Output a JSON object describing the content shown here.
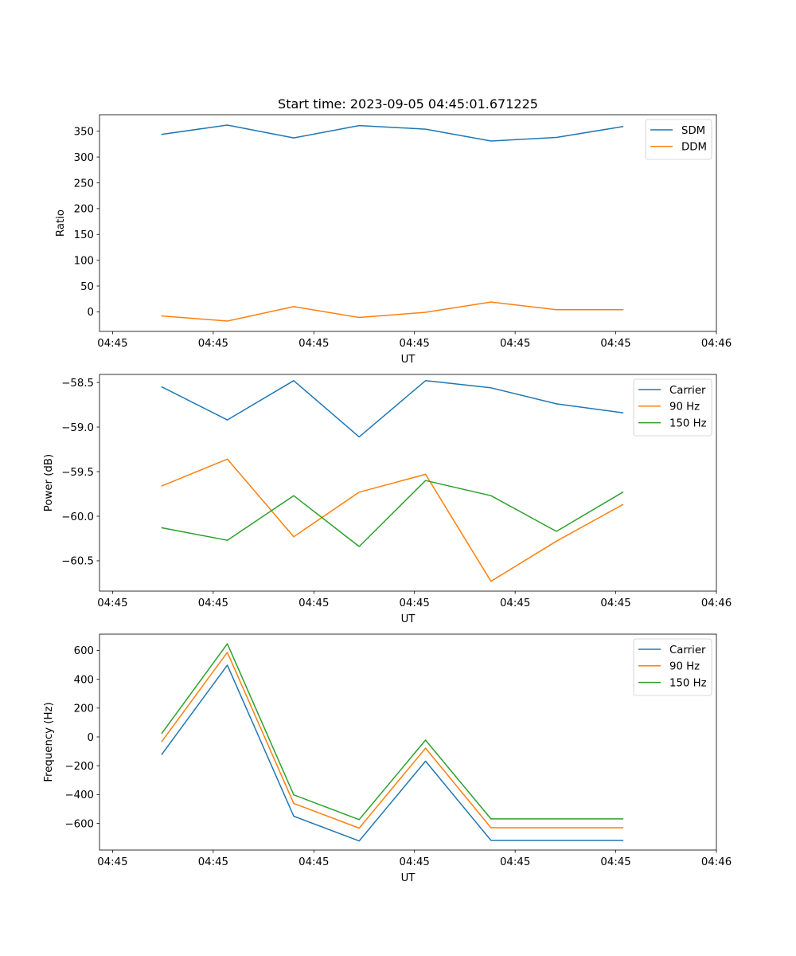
{
  "figure": {
    "title": "Start time: 2023-09-05 04:45:01.671225"
  },
  "chart_data": [
    {
      "type": "line",
      "title": "Start time: 2023-09-05 04:45:01.671225",
      "xlabel": "UT",
      "ylabel": "Ratio",
      "x_unit": "seconds after 04:45:00",
      "xlim": [
        -1.3,
        60
      ],
      "xticks": [
        0,
        10,
        20,
        30,
        40,
        50,
        60
      ],
      "xtick_labels": [
        "04:45",
        "04:45",
        "04:45",
        "04:45",
        "04:45",
        "04:45",
        "04:46"
      ],
      "ylim": [
        -38,
        382
      ],
      "yticks": [
        0,
        50,
        100,
        150,
        200,
        250,
        300,
        350
      ],
      "ytick_labels": [
        "0",
        "50",
        "100",
        "150",
        "200",
        "250",
        "300",
        "350"
      ],
      "x": [
        4.9,
        11.4,
        18.0,
        24.5,
        31.1,
        37.6,
        44.1,
        50.7
      ],
      "series": [
        {
          "name": "SDM",
          "color": "#1f77b4",
          "values": [
            344,
            362,
            337,
            361,
            354,
            331,
            338,
            359
          ]
        },
        {
          "name": "DDM",
          "color": "#ff7f0e",
          "values": [
            -8,
            -18,
            10,
            -11,
            -1,
            19,
            4,
            4
          ]
        }
      ],
      "legend": "top-right",
      "grid": false
    },
    {
      "type": "line",
      "xlabel": "UT",
      "ylabel": "Power (dB)",
      "x_unit": "seconds after 04:45:00",
      "xlim": [
        -1.3,
        60
      ],
      "xticks": [
        0,
        10,
        20,
        30,
        40,
        50,
        60
      ],
      "xtick_labels": [
        "04:45",
        "04:45",
        "04:45",
        "04:45",
        "04:45",
        "04:45",
        "04:46"
      ],
      "ylim": [
        -60.84,
        -58.41
      ],
      "yticks": [
        -60.5,
        -60.0,
        -59.5,
        -59.0,
        -58.5
      ],
      "ytick_labels": [
        "−60.5",
        "−60.0",
        "−59.5",
        "−59.0",
        "−58.5"
      ],
      "x": [
        4.9,
        11.4,
        18.0,
        24.5,
        31.1,
        37.6,
        44.1,
        50.7
      ],
      "series": [
        {
          "name": "Carrier",
          "color": "#1f77b4",
          "values": [
            -58.55,
            -58.92,
            -58.48,
            -59.11,
            -58.48,
            -58.56,
            -58.74,
            -58.84
          ]
        },
        {
          "name": "90 Hz",
          "color": "#ff7f0e",
          "values": [
            -59.66,
            -59.36,
            -60.23,
            -59.73,
            -59.53,
            -60.73,
            -60.28,
            -59.87
          ]
        },
        {
          "name": "150 Hz",
          "color": "#2ca02c",
          "values": [
            -60.13,
            -60.27,
            -59.77,
            -60.34,
            -59.6,
            -59.77,
            -60.17,
            -59.73
          ]
        }
      ],
      "legend": "top-right",
      "grid": false
    },
    {
      "type": "line",
      "xlabel": "UT",
      "ylabel": "Frequency (Hz)",
      "x_unit": "seconds after 04:45:00",
      "xlim": [
        -1.3,
        60
      ],
      "xticks": [
        0,
        10,
        20,
        30,
        40,
        50,
        60
      ],
      "xtick_labels": [
        "04:45",
        "04:45",
        "04:45",
        "04:45",
        "04:45",
        "04:45",
        "04:46"
      ],
      "ylim": [
        -785,
        713
      ],
      "yticks": [
        -600,
        -400,
        -200,
        0,
        200,
        400,
        600
      ],
      "ytick_labels": [
        "−600",
        "−400",
        "−200",
        "0",
        "200",
        "400",
        "600"
      ],
      "x": [
        4.9,
        11.4,
        18.0,
        24.5,
        31.1,
        37.6,
        44.1,
        50.7
      ],
      "series": [
        {
          "name": "Carrier",
          "color": "#1f77b4",
          "values": [
            -120,
            498,
            -550,
            -722,
            -168,
            -718,
            -718,
            -718
          ]
        },
        {
          "name": "90 Hz",
          "color": "#ff7f0e",
          "values": [
            -31,
            587,
            -461,
            -633,
            -78,
            -630,
            -630,
            -630
          ]
        },
        {
          "name": "150 Hz",
          "color": "#2ca02c",
          "values": [
            26,
            646,
            -402,
            -574,
            -22,
            -569,
            -569,
            -569
          ]
        }
      ],
      "legend": "top-right",
      "grid": false
    }
  ]
}
